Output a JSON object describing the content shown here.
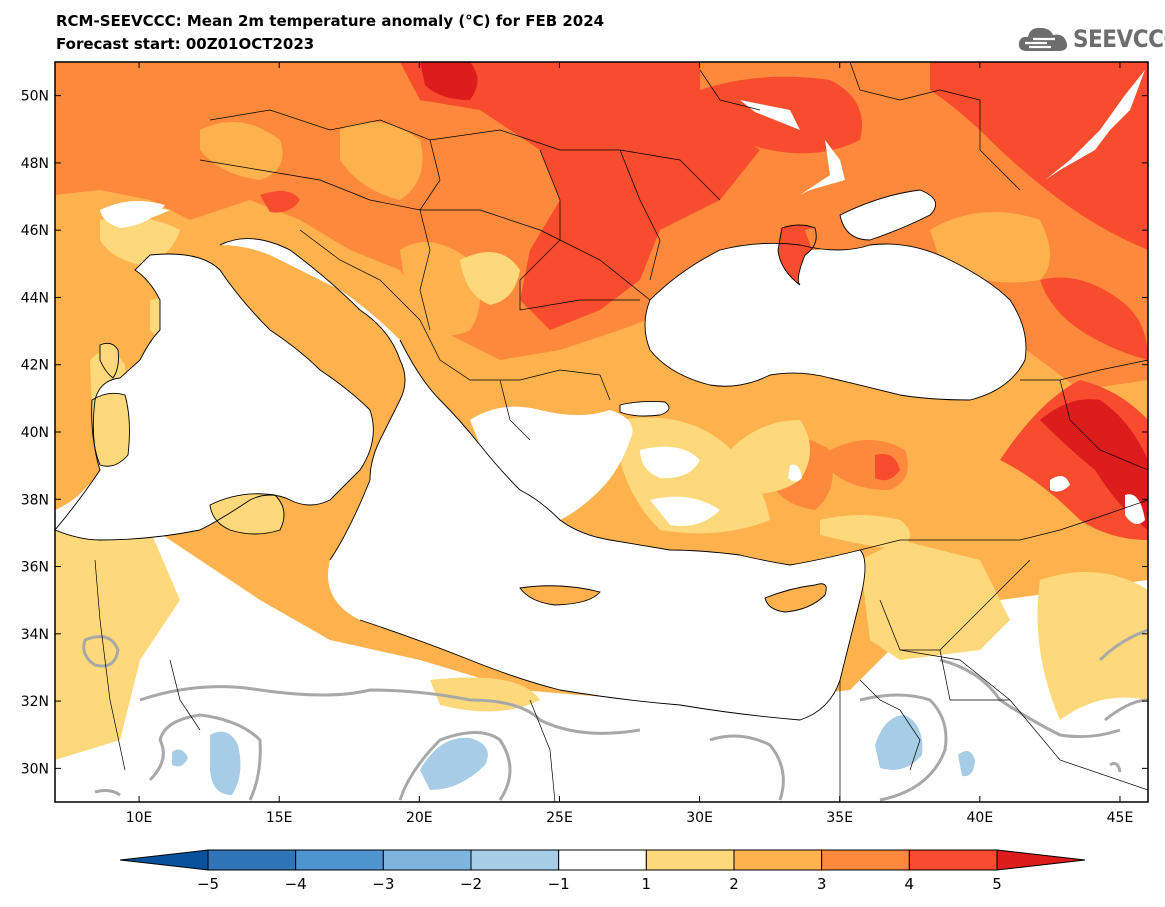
{
  "title": "RCM-SEEVCCC: Mean 2m temperature anomaly (°C) for FEB 2024",
  "subtitle": "Forecast start: 00Z01OCT2023",
  "logo": {
    "text": "SEEVCCC",
    "icon": "cloud-icon"
  },
  "map": {
    "lon_range": [
      7,
      46
    ],
    "lat_range": [
      29,
      51
    ],
    "lat_ticks": [
      "50N",
      "48N",
      "46N",
      "44N",
      "42N",
      "40N",
      "38N",
      "36N",
      "34N",
      "32N",
      "30N"
    ],
    "lon_ticks": [
      "10E",
      "15E",
      "20E",
      "25E",
      "30E",
      "35E",
      "40E",
      "45E"
    ]
  },
  "colorbar": {
    "labels": [
      "−5",
      "−4",
      "−3",
      "−2",
      "−1",
      "1",
      "2",
      "3",
      "4",
      "5"
    ],
    "colors": [
      "#08519c",
      "#2e74b7",
      "#4e94cf",
      "#7fb4de",
      "#a6cce6",
      "#ffffff",
      "#fdd97c",
      "#fdb24e",
      "#fd8a3c",
      "#f84c2e",
      "#dd1c1c"
    ]
  }
}
